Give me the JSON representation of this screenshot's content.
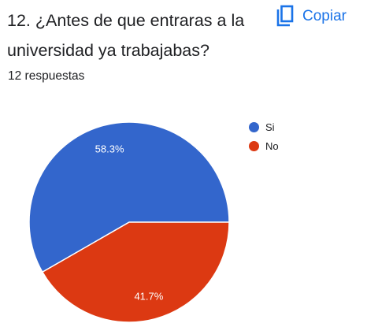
{
  "question": {
    "title": "12. ¿Antes de que entraras a la universidad ya trabajabas?",
    "copy_label": "Copiar",
    "copy_icon": "copy-icon",
    "response_count": "12 respuestas"
  },
  "colors": {
    "accent": "#1a73e8",
    "si": "#3366cc",
    "no": "#dc3912"
  },
  "chart_data": {
    "type": "pie",
    "title": "",
    "categories": [
      "Si",
      "No"
    ],
    "values": [
      58.3,
      41.7
    ],
    "data_labels": [
      "58.3%",
      "41.7%"
    ],
    "colors": [
      "#3366cc",
      "#dc3912"
    ],
    "legend_position": "right"
  }
}
